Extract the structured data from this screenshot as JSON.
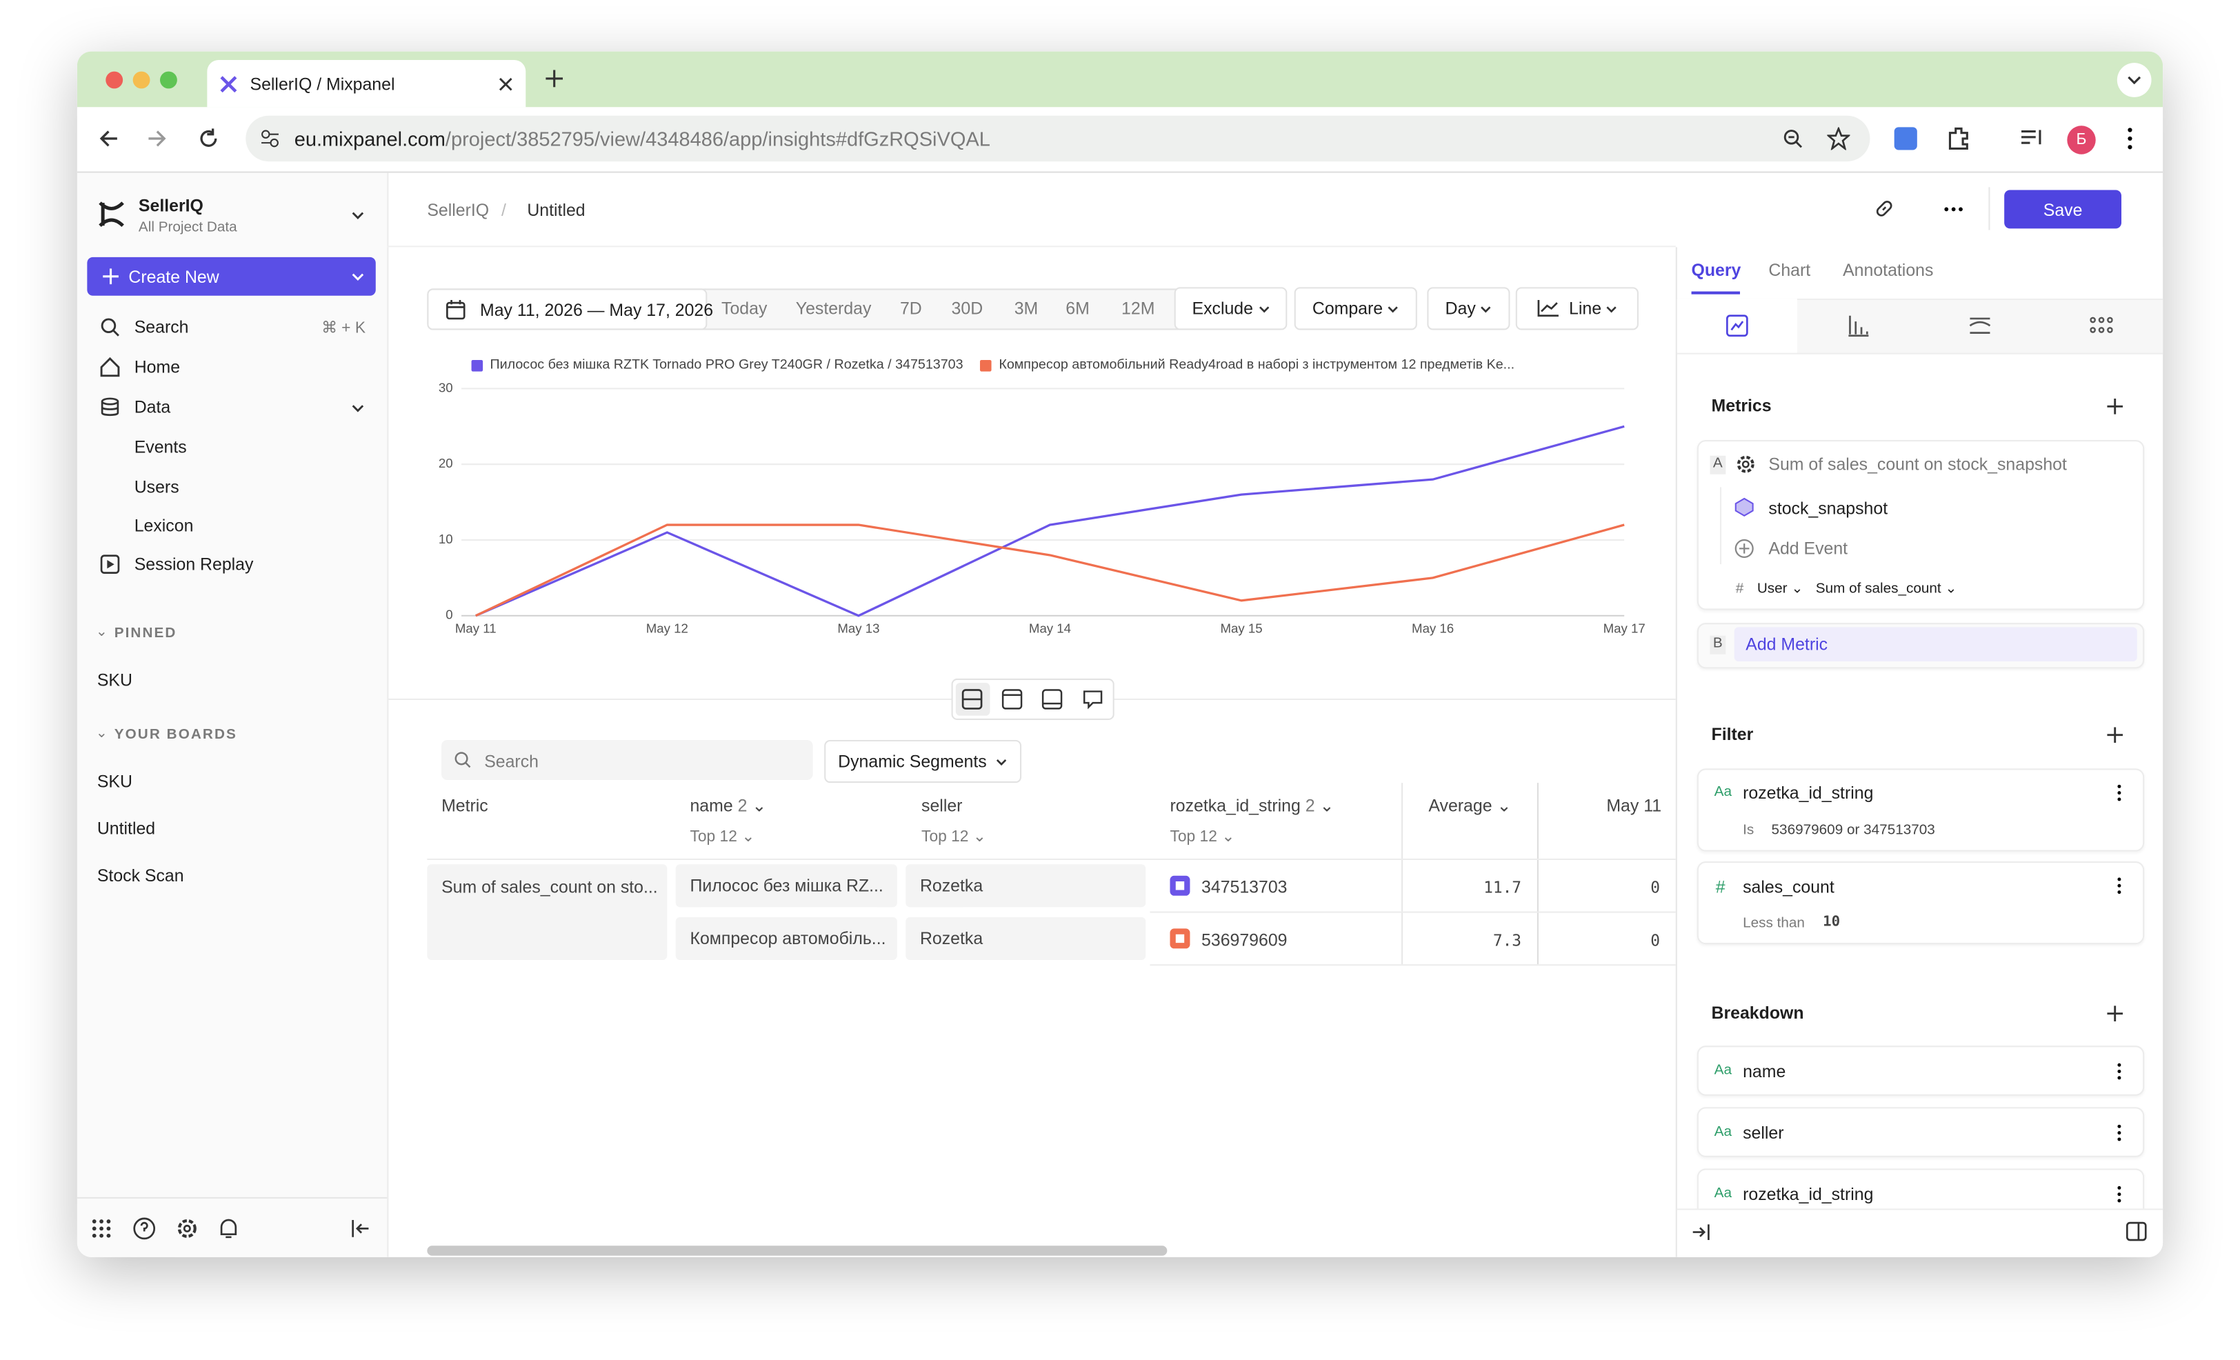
{
  "browser": {
    "tab_title": "SellerIQ / Mixpanel",
    "url_host": "eu.mixpanel.com",
    "url_path": "/project/3852795/view/4348486/app/insights#dfGzRQSiVQAL",
    "profile": "Б"
  },
  "sidebar": {
    "project": "SellerIQ",
    "project_sub": "All Project Data",
    "create": "Create New",
    "search": "Search",
    "shortcut": "⌘ + K",
    "home": "Home",
    "data": "Data",
    "data_items": [
      "Events",
      "Users",
      "Lexicon"
    ],
    "session_replay": "Session Replay",
    "pinned_title": "PINNED",
    "pinned": [
      "SKU"
    ],
    "boards_title": "YOUR BOARDS",
    "boards": [
      "SKU",
      "Untitled",
      "Stock Scan"
    ]
  },
  "header": {
    "breadcrumb": [
      "SellerIQ",
      "Untitled"
    ],
    "separator": "/",
    "save": "Save"
  },
  "toolbar": {
    "date_range": "May 11, 2026 — May 17, 2026",
    "ranges": [
      "Today",
      "Yesterday",
      "7D",
      "30D",
      "3M",
      "6M",
      "12M"
    ],
    "dropdowns": [
      "Exclude",
      "Compare",
      "Day",
      "Line"
    ]
  },
  "chart_data": {
    "type": "line",
    "categories": [
      "May 11",
      "May 12",
      "May 13",
      "May 14",
      "May 15",
      "May 16",
      "May 17"
    ],
    "series": [
      {
        "name": "Пилосос без мішка RZTK Tornado PRO Grey T240GR / Rozetka / 347513703",
        "color": "#6b55e8",
        "values": [
          0,
          11,
          0,
          12,
          16,
          18,
          25
        ]
      },
      {
        "name": "Компресор автомобільний Ready4road в наборі з інструментом 12 предметів Ke...",
        "color": "#f0704f",
        "values": [
          0,
          12,
          12,
          8,
          2,
          5,
          12
        ]
      }
    ],
    "ylim": [
      0,
      30
    ],
    "yticks": [
      0,
      10,
      20,
      30
    ],
    "grid": true
  },
  "table": {
    "search": "Search",
    "segments": "Dynamic Segments",
    "columns": {
      "metric": "Metric",
      "name": "name",
      "name_count": "2",
      "name_top": "Top 12",
      "seller": "seller",
      "seller_top": "Top 12",
      "id": "rozetka_id_string",
      "id_count": "2",
      "id_top": "Top 12",
      "average": "Average",
      "date": "May 11"
    },
    "metric": "Sum of sales_count on sto...",
    "rows": [
      {
        "name": "Пилосос без мішка RZ...",
        "seller": "Rozetka",
        "id": "347513703",
        "average": 11.7,
        "first": 0
      },
      {
        "name": "Компресор автомобіль...",
        "seller": "Rozetka",
        "id": "536979609",
        "average": 7.3,
        "first": 0
      }
    ]
  },
  "panel": {
    "tabs": [
      "Query",
      "Chart",
      "Annotations"
    ],
    "metrics_title": "Metrics",
    "metric_a_letter": "A",
    "metric_a": "Sum of sales_count on stock_snapshot",
    "event": "stock_snapshot",
    "add_event": "Add Event",
    "user": "User",
    "measure": "Sum of sales_count",
    "metric_b_letter": "B",
    "add_metric": "Add Metric",
    "filter_title": "Filter",
    "filters": [
      {
        "icon": "Aa",
        "name": "rozetka_id_string",
        "op": "Is",
        "value": "536979609 or 347513703"
      },
      {
        "icon": "#",
        "name": "sales_count",
        "op": "Less than",
        "value": "10"
      }
    ],
    "breakdown_title": "Breakdown",
    "breakdowns": [
      {
        "icon": "Aa",
        "name": "name"
      },
      {
        "icon": "Aa",
        "name": "seller"
      },
      {
        "icon": "Aa",
        "name": "rozetka_id_string"
      }
    ]
  }
}
